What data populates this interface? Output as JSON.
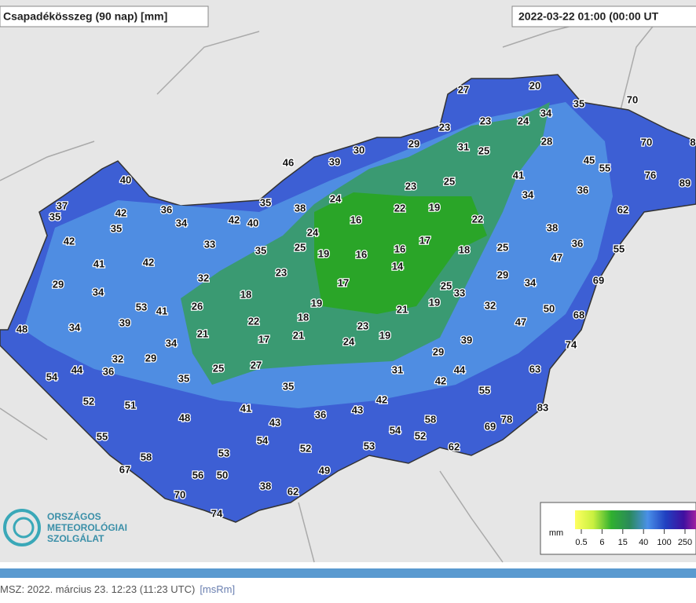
{
  "header": {
    "title": "Csapadékösszeg (90 nap) [mm]",
    "timestamp": "2022-03-22 01:00 (00:00 UT"
  },
  "stations": [
    27,
    20,
    35,
    70,
    34,
    23,
    23,
    24,
    29,
    31,
    25,
    28,
    70,
    8,
    30,
    46,
    39,
    45,
    55,
    76,
    89,
    41,
    23,
    25,
    40,
    34,
    36,
    24,
    22,
    19,
    35,
    38,
    62,
    37,
    36,
    42,
    35,
    34,
    42,
    40,
    16,
    22,
    38,
    35,
    24,
    17,
    36,
    55,
    42,
    33,
    35,
    25,
    19,
    16,
    16,
    18,
    25,
    47,
    41,
    42,
    14,
    23,
    29,
    69,
    32,
    17,
    25,
    33,
    34,
    29,
    34,
    18,
    19,
    21,
    19,
    32,
    50,
    53,
    41,
    26,
    68,
    18,
    47,
    48,
    34,
    39,
    22,
    23,
    21,
    17,
    21,
    24,
    19,
    39,
    34,
    74,
    29,
    32,
    29,
    36,
    44,
    25,
    27,
    31,
    44,
    63,
    54,
    35,
    42,
    35,
    55,
    52,
    51,
    41,
    42,
    43,
    36,
    83,
    48,
    43,
    58,
    78,
    69,
    54,
    52,
    55,
    54,
    52,
    53,
    62,
    58,
    53,
    67,
    56,
    50,
    49,
    38,
    62,
    70,
    74
  ],
  "legend": {
    "unit": "mm",
    "ticks": [
      0.5,
      6,
      15,
      40,
      100,
      250
    ]
  },
  "logo": {
    "line1": "ORSZÁGOS",
    "line2": "METEOROLÓGIAI",
    "line3": "SZOLGÁLAT"
  },
  "footer": {
    "text": "MSZ: 2022. március 23. 12:23 (11:23  UTC)",
    "link": "[msRm]"
  }
}
